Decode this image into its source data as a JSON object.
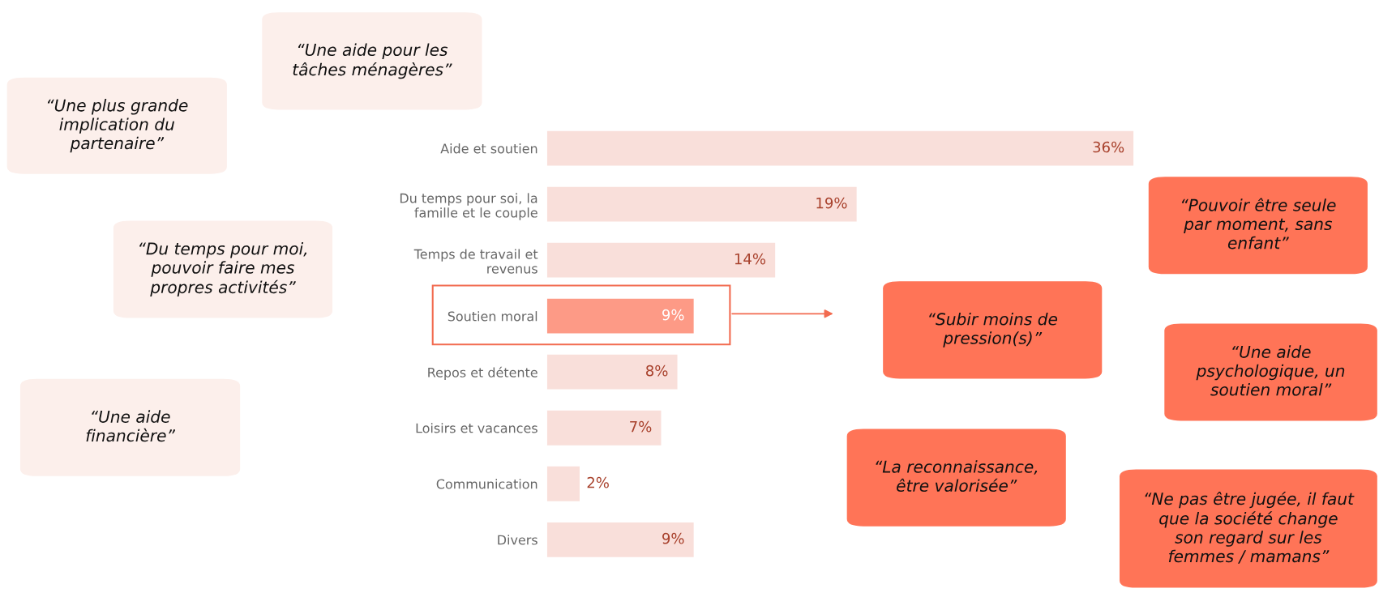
{
  "chart_data": {
    "type": "bar",
    "orientation": "horizontal",
    "categories": [
      "Aide et soutien",
      "Du temps pour soi, la\nfamille et le couple",
      "Temps de travail et\nrevenus",
      "Soutien moral",
      "Repos et détente",
      "Loisirs et vacances",
      "Communication",
      "Divers"
    ],
    "values": [
      36,
      19,
      14,
      9,
      8,
      7,
      2,
      9
    ],
    "value_labels": [
      "36%",
      "19%",
      "14%",
      "9%",
      "8%",
      "7%",
      "2%",
      "9%"
    ],
    "colors": [
      "#f9dfda",
      "#f9dfda",
      "#f9dfda",
      "#fd9a86",
      "#f9dfda",
      "#f9dfda",
      "#f9dfda",
      "#f9dfda"
    ],
    "grid": false,
    "legend": false,
    "annotations": [
      "“Une aide pour les\ntâches ménagères”",
      "“Une plus grande\nimplication du\npartenaire”",
      "“Du temps pour moi,\npouvoir faire mes\npropres activités”",
      "“Une aide\nfinancière”",
      "“Pouvoir être seule\npar moment, sans\nenfant”",
      "“Subir moins de\npression(s)”",
      "“Une aide\npsychologique, un\nsoutien moral”",
      "“La reconnaissance,\nêtre valorisée”",
      "“Ne pas être jugée, il faut\nque la société change\nson regard sur les\nfemmes / mamans”"
    ]
  }
}
